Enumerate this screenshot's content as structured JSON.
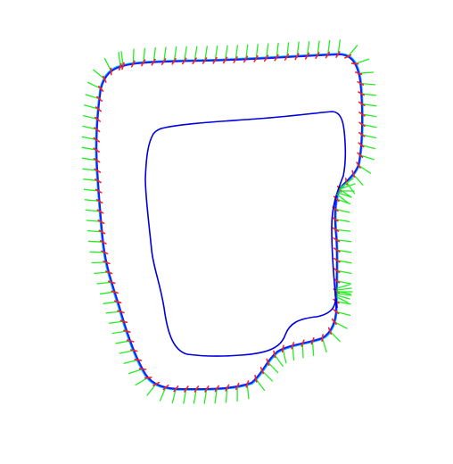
{
  "colors": {
    "background": "#ffffff",
    "inner_path": "#0000dd",
    "outer_path": "#1a1aff",
    "reference_path": "#00bbee",
    "markers": "#ff2020",
    "normals": "#22ee22"
  },
  "legend": []
}
